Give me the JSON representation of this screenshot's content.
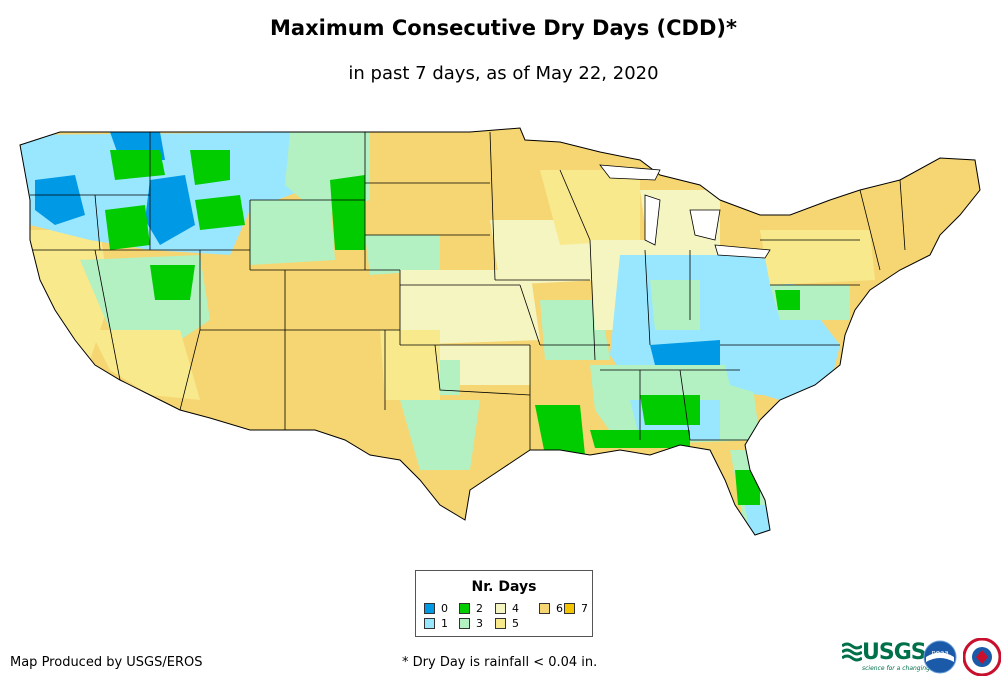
{
  "title": "Maximum Consecutive Dry Days (CDD)*",
  "subtitle": "in past 7 days, as of May 22, 2020",
  "legend": {
    "title": "Nr. Days",
    "items": [
      {
        "label": "0",
        "color": "#0099e6"
      },
      {
        "label": "1",
        "color": "#99e6ff"
      },
      {
        "label": "2",
        "color": "#00cc00"
      },
      {
        "label": "3",
        "color": "#b3f0c2"
      },
      {
        "label": "4",
        "color": "#f5f5c2"
      },
      {
        "label": "5",
        "color": "#f8e98d"
      },
      {
        "label": "6",
        "color": "#f6d672"
      },
      {
        "label": "7",
        "color": "#f5c400"
      }
    ]
  },
  "footer": {
    "producer": "Map Produced by USGS/EROS",
    "note": "* Dry Day is rainfall < 0.04 in."
  },
  "logos": {
    "usgs": "USGS",
    "usgs_tagline": "science for a changing world",
    "noaa": "noaa"
  }
}
